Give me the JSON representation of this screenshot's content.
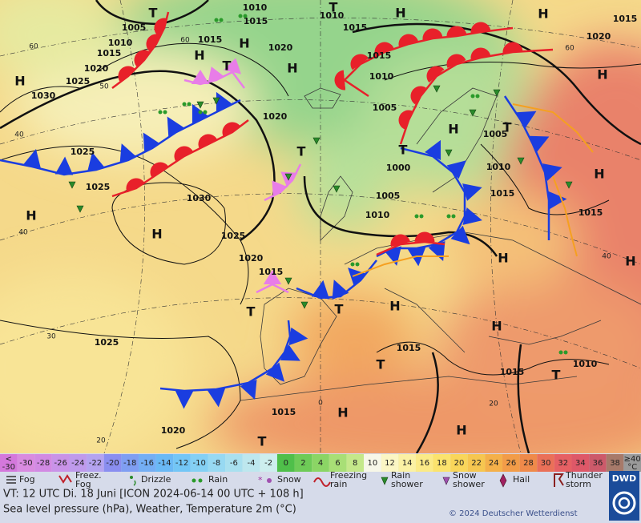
{
  "map": {
    "pressure_labels": [
      "1010",
      "1015",
      "1005",
      "1010",
      "1015",
      "1020",
      "1025",
      "1030",
      "H",
      "1015",
      "1020",
      "1010",
      "T",
      "1015",
      "H",
      "H",
      "1015",
      "1020",
      "1015",
      "1010",
      "H",
      "H",
      "H",
      "T",
      "T",
      "1005",
      "H",
      "1020",
      "T",
      "1025",
      "1025",
      "H",
      "1030",
      "H",
      "1025",
      "1020",
      "1015",
      "T",
      "1000",
      "1005",
      "1010",
      "1005",
      "1010",
      "1015",
      "1015",
      "H",
      "H",
      "H",
      "H",
      "T",
      "T",
      "T",
      "H",
      "H",
      "T",
      "1015",
      "1015",
      "1010",
      "T",
      "1025",
      "1015",
      "H",
      "H",
      "1020",
      "T"
    ],
    "lat_labels": [
      "60",
      "50",
      "40",
      "40",
      "30",
      "20",
      "60",
      "60",
      "0",
      "20",
      "40"
    ]
  },
  "legend": {
    "low_end": [
      "<",
      "-30"
    ],
    "temperature_scale": [
      "-30",
      "-28",
      "-26",
      "-24",
      "-22",
      "-20",
      "-18",
      "-16",
      "-14",
      "-12",
      "-10",
      "-8",
      "-6",
      "-4",
      "-2",
      "0",
      "2",
      "4",
      "6",
      "8",
      "10",
      "12",
      "14",
      "16",
      "18",
      "20",
      "22",
      "24",
      "26",
      "28",
      "30",
      "32",
      "34",
      "36",
      "38"
    ],
    "high_end": [
      "≥40",
      "°C"
    ],
    "weather": [
      [
        "Fog"
      ],
      [
        "Freez.",
        "Fog"
      ],
      [
        "Drizzle"
      ],
      [
        "Rain"
      ],
      [
        "Snow"
      ],
      [
        "Freezing",
        "rain"
      ],
      [
        "Rain",
        "shower"
      ],
      [
        "Snow",
        "shower"
      ],
      [
        "Hail"
      ],
      [
        "Thunder",
        "storm"
      ]
    ]
  },
  "footer": {
    "valid_time": "VT: 12 UTC Di.  18 Juni [ICON 2024-06-14  00 UTC + 108 h]",
    "description": "Sea level pressure (hPa), Weather, Temperature 2m (°C)",
    "copyright": "© 2024 Deutscher Wetterdienst",
    "logo": "DWD"
  }
}
